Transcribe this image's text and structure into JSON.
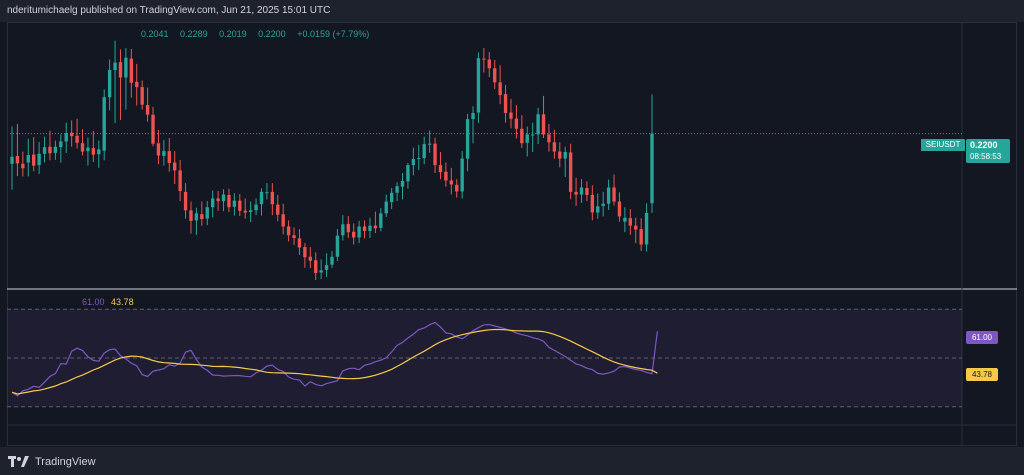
{
  "header": {
    "published": "nderitumichaelg published on TradingView.com, Jun 21, 2025 15:01 UTC"
  },
  "legend": {
    "open": "0.2041",
    "high": "0.2289",
    "low": "0.2019",
    "close": "0.2200",
    "change": "+0.0159 (+7.79%)"
  },
  "price_axis": {
    "symbol": "SEIUSDT",
    "last_price": "0.2200",
    "countdown": "08:58:53"
  },
  "rsi": {
    "value_label": "61.00",
    "ma_label": "43.78"
  },
  "footer": {
    "brand": "TradingView"
  },
  "colors": {
    "up": "#26a69a",
    "down": "#ef5350",
    "rsi": "#7e57c2",
    "rsi_ma": "#f7c948",
    "background": "#131722"
  },
  "chart_data": {
    "type": "candlestick",
    "symbol": "SEIUSDT",
    "last_price": 0.22,
    "ohlc": [
      [
        0.2131,
        0.2216,
        0.2072,
        0.2147
      ],
      [
        0.2149,
        0.2222,
        0.2103,
        0.2132
      ],
      [
        0.2131,
        0.2159,
        0.2102,
        0.2121
      ],
      [
        0.2134,
        0.2188,
        0.2102,
        0.2151
      ],
      [
        0.2152,
        0.2192,
        0.2114,
        0.2127
      ],
      [
        0.2128,
        0.2181,
        0.2108,
        0.2154
      ],
      [
        0.2154,
        0.2193,
        0.2134,
        0.2169
      ],
      [
        0.217,
        0.2207,
        0.2139,
        0.2155
      ],
      [
        0.2156,
        0.2184,
        0.214,
        0.217
      ],
      [
        0.2169,
        0.2198,
        0.2134,
        0.2182
      ],
      [
        0.2182,
        0.2225,
        0.2156,
        0.2201
      ],
      [
        0.2202,
        0.223,
        0.217,
        0.2194
      ],
      [
        0.2195,
        0.2234,
        0.2166,
        0.2179
      ],
      [
        0.2178,
        0.221,
        0.215,
        0.2159
      ],
      [
        0.216,
        0.2191,
        0.2127,
        0.2168
      ],
      [
        0.2167,
        0.2206,
        0.2135,
        0.2152
      ],
      [
        0.2153,
        0.2184,
        0.2122,
        0.2164
      ],
      [
        0.2161,
        0.2301,
        0.2139,
        0.2283
      ],
      [
        0.2283,
        0.2369,
        0.2253,
        0.2345
      ],
      [
        0.2345,
        0.2412,
        0.2224,
        0.2362
      ],
      [
        0.2363,
        0.2392,
        0.2231,
        0.2328
      ],
      [
        0.2328,
        0.2395,
        0.2255,
        0.2373
      ],
      [
        0.2371,
        0.2393,
        0.2282,
        0.2316
      ],
      [
        0.2318,
        0.2359,
        0.2264,
        0.2306
      ],
      [
        0.2306,
        0.2321,
        0.2255,
        0.2266
      ],
      [
        0.2265,
        0.2305,
        0.2227,
        0.2243
      ],
      [
        0.2243,
        0.2261,
        0.2171,
        0.2177
      ],
      [
        0.2178,
        0.2208,
        0.213,
        0.215
      ],
      [
        0.2149,
        0.2185,
        0.2127,
        0.216
      ],
      [
        0.216,
        0.219,
        0.2113,
        0.2133
      ],
      [
        0.2134,
        0.216,
        0.2085,
        0.2116
      ],
      [
        0.2116,
        0.214,
        0.2046,
        0.2069
      ],
      [
        0.2067,
        0.2087,
        0.2006,
        0.2025
      ],
      [
        0.2025,
        0.2045,
        0.1972,
        0.2001
      ],
      [
        0.2002,
        0.2031,
        0.1969,
        0.2018
      ],
      [
        0.2016,
        0.2045,
        0.199,
        0.2005
      ],
      [
        0.2006,
        0.2046,
        0.1991,
        0.2032
      ],
      [
        0.2032,
        0.207,
        0.2009,
        0.2052
      ],
      [
        0.2052,
        0.2069,
        0.2024,
        0.2046
      ],
      [
        0.2046,
        0.2073,
        0.2023,
        0.2061
      ],
      [
        0.206,
        0.2074,
        0.2021,
        0.2032
      ],
      [
        0.2033,
        0.2064,
        0.2013,
        0.2047
      ],
      [
        0.2047,
        0.2062,
        0.2012,
        0.2024
      ],
      [
        0.2024,
        0.2052,
        0.2006,
        0.202
      ],
      [
        0.2021,
        0.2045,
        0.1998,
        0.2025
      ],
      [
        0.2025,
        0.2052,
        0.2014,
        0.2038
      ],
      [
        0.2039,
        0.2075,
        0.2013,
        0.2067
      ],
      [
        0.2066,
        0.2087,
        0.205,
        0.2066
      ],
      [
        0.2067,
        0.2087,
        0.2014,
        0.2039
      ],
      [
        0.2038,
        0.206,
        0.2,
        0.2015
      ],
      [
        0.2016,
        0.204,
        0.197,
        0.1988
      ],
      [
        0.1988,
        0.2002,
        0.1954,
        0.1968
      ],
      [
        0.1968,
        0.1986,
        0.1946,
        0.1962
      ],
      [
        0.1961,
        0.1982,
        0.1923,
        0.194
      ],
      [
        0.1941,
        0.195,
        0.1894,
        0.1918
      ],
      [
        0.1919,
        0.1941,
        0.1893,
        0.191
      ],
      [
        0.1911,
        0.1929,
        0.1866,
        0.1882
      ],
      [
        0.1883,
        0.1913,
        0.1868,
        0.1888
      ],
      [
        0.1889,
        0.1927,
        0.1873,
        0.19
      ],
      [
        0.1901,
        0.1932,
        0.1894,
        0.1919
      ],
      [
        0.1919,
        0.1982,
        0.1909,
        0.1967
      ],
      [
        0.1968,
        0.2014,
        0.1956,
        0.1993
      ],
      [
        0.1994,
        0.2012,
        0.1962,
        0.1975
      ],
      [
        0.1976,
        0.1995,
        0.1947,
        0.1963
      ],
      [
        0.1963,
        0.2001,
        0.195,
        0.1988
      ],
      [
        0.1988,
        0.2002,
        0.1961,
        0.1978
      ],
      [
        0.1978,
        0.2008,
        0.1962,
        0.199
      ],
      [
        0.199,
        0.2022,
        0.1973,
        0.1984
      ],
      [
        0.1985,
        0.203,
        0.1977,
        0.2018
      ],
      [
        0.2018,
        0.2061,
        0.201,
        0.2045
      ],
      [
        0.2044,
        0.2076,
        0.2028,
        0.2065
      ],
      [
        0.2065,
        0.2089,
        0.2046,
        0.208
      ],
      [
        0.2079,
        0.211,
        0.205,
        0.2092
      ],
      [
        0.2091,
        0.2133,
        0.2074,
        0.2128
      ],
      [
        0.2128,
        0.2168,
        0.2105,
        0.2142
      ],
      [
        0.2142,
        0.2174,
        0.2117,
        0.2144
      ],
      [
        0.2144,
        0.2193,
        0.213,
        0.2176
      ],
      [
        0.2177,
        0.2207,
        0.2156,
        0.2177
      ],
      [
        0.2177,
        0.2191,
        0.211,
        0.2128
      ],
      [
        0.2128,
        0.2158,
        0.2096,
        0.2112
      ],
      [
        0.2113,
        0.2134,
        0.2079,
        0.2093
      ],
      [
        0.2093,
        0.2122,
        0.2061,
        0.2084
      ],
      [
        0.2083,
        0.2096,
        0.2054,
        0.2068
      ],
      [
        0.2068,
        0.216,
        0.2052,
        0.2143
      ],
      [
        0.2143,
        0.2245,
        0.2114,
        0.2233
      ],
      [
        0.2233,
        0.2262,
        0.2178,
        0.2247
      ],
      [
        0.2248,
        0.2385,
        0.2224,
        0.2372
      ],
      [
        0.2371,
        0.2395,
        0.2339,
        0.237
      ],
      [
        0.2369,
        0.2386,
        0.2329,
        0.2349
      ],
      [
        0.2349,
        0.2368,
        0.2302,
        0.2317
      ],
      [
        0.2317,
        0.2356,
        0.2267,
        0.2288
      ],
      [
        0.229,
        0.2311,
        0.2225,
        0.2247
      ],
      [
        0.2248,
        0.2279,
        0.2212,
        0.2234
      ],
      [
        0.2234,
        0.2265,
        0.2189,
        0.2211
      ],
      [
        0.2211,
        0.2242,
        0.2167,
        0.2178
      ],
      [
        0.2179,
        0.2216,
        0.2148,
        0.2198
      ],
      [
        0.2198,
        0.2225,
        0.2158,
        0.2198
      ],
      [
        0.2198,
        0.2259,
        0.2176,
        0.2244
      ],
      [
        0.2244,
        0.2286,
        0.219,
        0.2198
      ],
      [
        0.2198,
        0.2222,
        0.2159,
        0.218
      ],
      [
        0.218,
        0.2209,
        0.2143,
        0.2159
      ],
      [
        0.2159,
        0.218,
        0.2123,
        0.2143
      ],
      [
        0.2143,
        0.217,
        0.2101,
        0.2158
      ],
      [
        0.2157,
        0.2177,
        0.205,
        0.2067
      ],
      [
        0.2067,
        0.2099,
        0.2035,
        0.2061
      ],
      [
        0.2061,
        0.2096,
        0.2042,
        0.2077
      ],
      [
        0.2076,
        0.2091,
        0.2046,
        0.206
      ],
      [
        0.206,
        0.2082,
        0.2002,
        0.202
      ],
      [
        0.202,
        0.2063,
        0.2006,
        0.2034
      ],
      [
        0.2035,
        0.2067,
        0.2011,
        0.204
      ],
      [
        0.204,
        0.2095,
        0.2026,
        0.2077
      ],
      [
        0.2077,
        0.2107,
        0.2036,
        0.2045
      ],
      [
        0.2045,
        0.2066,
        0.1999,
        0.2011
      ],
      [
        0.1999,
        0.2032,
        0.1975,
        0.2008
      ],
      [
        0.2007,
        0.2028,
        0.1969,
        0.199
      ],
      [
        0.199,
        0.2008,
        0.195,
        0.1981
      ],
      [
        0.1982,
        0.2007,
        0.1932,
        0.1947
      ],
      [
        0.1947,
        0.2041,
        0.1931,
        0.2019
      ],
      [
        0.2041,
        0.2289,
        0.2019,
        0.22
      ]
    ],
    "rsi": [
      36.0,
      34.5,
      36.5,
      37.2,
      38.4,
      38.0,
      40.1,
      42.5,
      43.6,
      47.7,
      47.5,
      52.8,
      54.0,
      53.1,
      50.5,
      49.0,
      48.7,
      52.0,
      53.4,
      53.7,
      50.9,
      49.6,
      47.9,
      46.8,
      43.2,
      42.4,
      44.6,
      45.1,
      45.6,
      47.2,
      46.7,
      47.9,
      52.4,
      53.1,
      49.4,
      46.3,
      44.9,
      43.0,
      42.9,
      42.6,
      42.7,
      42.8,
      42.8,
      42.5,
      42.3,
      43.9,
      45.0,
      46.7,
      47.1,
      45.3,
      44.5,
      42.2,
      41.3,
      41.0,
      38.5,
      40.3,
      39.2,
      38.6,
      39.5,
      40.1,
      40.7,
      44.7,
      45.6,
      45.8,
      45.2,
      47.0,
      47.6,
      48.5,
      49.1,
      50.1,
      52.5,
      55.2,
      56.4,
      58.2,
      59.8,
      61.6,
      62.3,
      63.6,
      64.6,
      62.7,
      60.3,
      59.9,
      58.7,
      57.9,
      59.4,
      61.2,
      62.4,
      63.6,
      63.7,
      63.1,
      62.6,
      61.9,
      61.2,
      60.2,
      59.6,
      59.1,
      58.3,
      57.8,
      56.9,
      54.4,
      53.1,
      51.9,
      50.6,
      49.1,
      47.6,
      46.9,
      45.8,
      45.3,
      43.7,
      43.4,
      43.8,
      44.6,
      46.3,
      46.5,
      45.9,
      45.3,
      44.9,
      44.1,
      43.6,
      61.0
    ],
    "rsi_ma_last": 43.78,
    "rsi_bands": [
      30,
      50,
      70
    ],
    "ylim": [
      0.185,
      0.245
    ]
  }
}
